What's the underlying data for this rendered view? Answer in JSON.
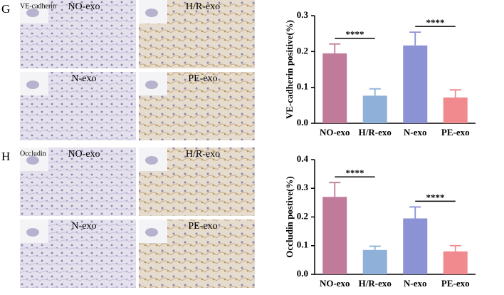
{
  "panels": [
    {
      "letter": "G",
      "stain": "VE-cadherin",
      "images": [
        "NO-exo",
        "H/R-exo",
        "N-exo",
        "PE-exo"
      ]
    },
    {
      "letter": "H",
      "stain": "Occludin",
      "images": [
        "NO-exo",
        "H/R-exo",
        "N-exo",
        "PE-exo"
      ]
    }
  ],
  "chart_data": [
    {
      "type": "bar",
      "ylabel": "VE-cadherin positive(%)",
      "categories": [
        "NO-exo",
        "H/R-exo",
        "N-exo",
        "PE-exo"
      ],
      "values": [
        0.195,
        0.077,
        0.217,
        0.072
      ],
      "errors": [
        0.026,
        0.019,
        0.037,
        0.021
      ],
      "colors": [
        "#c07a9a",
        "#8fb0d8",
        "#8c93d4",
        "#f08a8e"
      ],
      "ylim": [
        0,
        0.3
      ],
      "yticks": [
        {
          "value": 0,
          "label": "0.0"
        },
        0.1,
        0.2,
        0.3
      ],
      "annotations": [
        {
          "text": "****",
          "categories": [
            0,
            1
          ]
        },
        {
          "text": "****",
          "categories": [
            2,
            3
          ]
        }
      ]
    },
    {
      "type": "bar",
      "ylabel": "Occludin postive(%)",
      "categories": [
        "NO-exo",
        "H/R-exo",
        "N-exo",
        "PE-exo"
      ],
      "values": [
        0.27,
        0.085,
        0.195,
        0.08
      ],
      "errors": [
        0.05,
        0.013,
        0.04,
        0.02
      ],
      "colors": [
        "#c07a9a",
        "#8fb0d8",
        "#8c93d4",
        "#f08a8e"
      ],
      "ylim": [
        0,
        0.4
      ],
      "yticks": [
        {
          "value": 0,
          "label": "0.0"
        },
        0.1,
        0.2,
        0.3,
        0.4
      ],
      "annotations": [
        {
          "text": "****",
          "categories": [
            0,
            1
          ]
        },
        {
          "text": "****",
          "categories": [
            2,
            3
          ]
        }
      ]
    }
  ]
}
